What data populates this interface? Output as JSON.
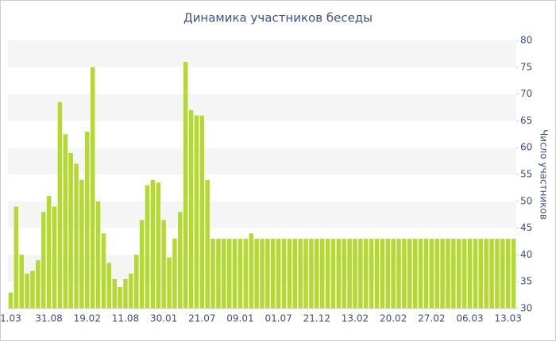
{
  "chart_data": {
    "type": "bar",
    "title": "Динамика участников беседы",
    "y_axis_label": "Число участников",
    "categories": [
      "1.03",
      null,
      null,
      null,
      null,
      null,
      null,
      "31.08",
      null,
      null,
      null,
      null,
      null,
      null,
      "19.02",
      null,
      null,
      null,
      null,
      null,
      null,
      "11.08",
      null,
      null,
      null,
      null,
      null,
      null,
      "30.01",
      null,
      null,
      null,
      null,
      null,
      null,
      "21.07",
      null,
      null,
      null,
      null,
      null,
      null,
      "09.01",
      null,
      null,
      null,
      null,
      null,
      null,
      "01.07",
      null,
      null,
      null,
      null,
      null,
      null,
      "21.12",
      null,
      null,
      null,
      null,
      null,
      null,
      "13.02",
      null,
      null,
      null,
      null,
      null,
      null,
      "20.02",
      null,
      null,
      null,
      null,
      null,
      null,
      "27.02",
      null,
      null,
      null,
      null,
      null,
      null,
      "06.03",
      null,
      null,
      null,
      null,
      null,
      null,
      "13.03",
      null
    ],
    "values": [
      33,
      49,
      40,
      36.5,
      37,
      39,
      48,
      51,
      49,
      68.5,
      62.5,
      59,
      57,
      54,
      63,
      75,
      50,
      44,
      38.5,
      35.5,
      34,
      35.5,
      36.5,
      40,
      46.5,
      53,
      54,
      53.5,
      46.5,
      39.5,
      43,
      48,
      76,
      67,
      66,
      66,
      54,
      43,
      43,
      43,
      43,
      43,
      43,
      43,
      44,
      43,
      43,
      43,
      43,
      43,
      43,
      43,
      43,
      43,
      43,
      43,
      43,
      43,
      43,
      43,
      43,
      43,
      43,
      43,
      43,
      43,
      43,
      43,
      43,
      43,
      43,
      43,
      43,
      43,
      43,
      43,
      43,
      43,
      43,
      43,
      43,
      43,
      43,
      43,
      43,
      43,
      43,
      43,
      43,
      43,
      43,
      43,
      43
    ],
    "color": "#b5d930",
    "ylim": [
      30,
      80
    ],
    "yticks": [
      30,
      35,
      40,
      45,
      50,
      55,
      60,
      65,
      70,
      75,
      80
    ],
    "y_axis_side": "right",
    "banded_grid": true
  }
}
